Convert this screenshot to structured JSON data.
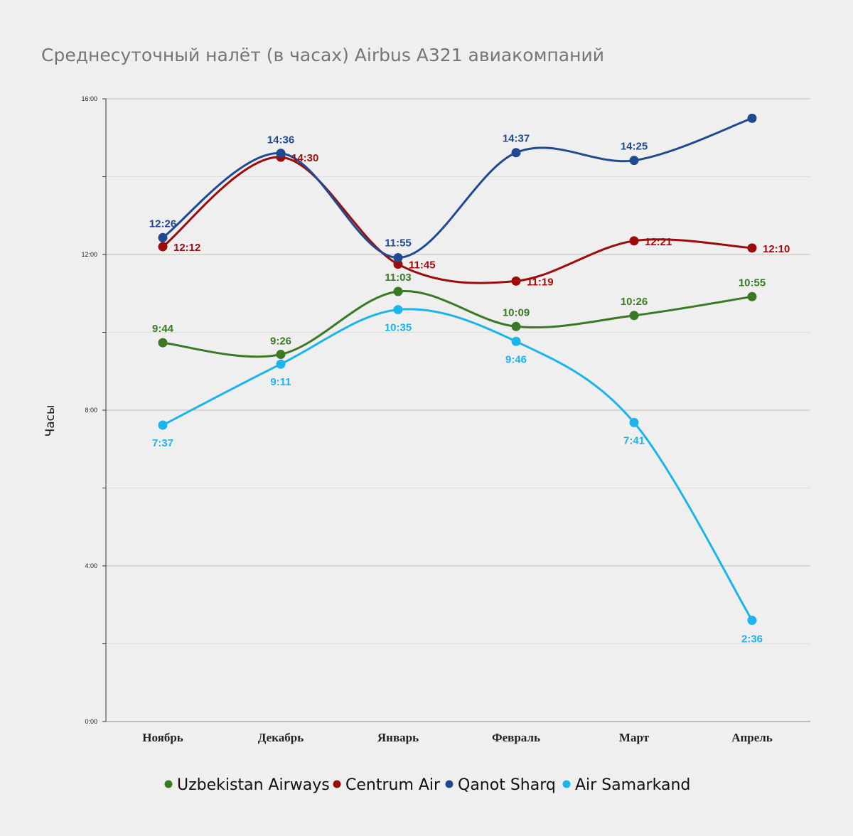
{
  "chart_data": {
    "type": "line",
    "title": "Среднесуточный налёт (в часах) Airbus A321 авиакомпаний",
    "xlabel": "",
    "ylabel": "Часы",
    "categories": [
      "Ноябрь",
      "Декабрь",
      "Январь",
      "Февраль",
      "Март",
      "Апрель"
    ],
    "ylim": [
      0,
      16
    ],
    "yticks": [
      {
        "value": 0,
        "label": "0:00"
      },
      {
        "value": 4,
        "label": "4:00"
      },
      {
        "value": 8,
        "label": "8:00"
      },
      {
        "value": 12,
        "label": "12:00"
      },
      {
        "value": 16,
        "label": "16:00"
      }
    ],
    "grid": true,
    "legend_position": "bottom",
    "series": [
      {
        "name": "Uzbekistan Airways",
        "color": "#3a7a25",
        "values": [
          9.733,
          9.433,
          11.05,
          10.15,
          10.433,
          10.917
        ],
        "labels": [
          "9:44",
          "9:26",
          "11:03",
          "10:09",
          "10:26",
          "10:55"
        ]
      },
      {
        "name": "Centrum Air",
        "color": "#9b0d0d",
        "values": [
          12.2,
          14.5,
          11.75,
          11.317,
          12.35,
          12.167
        ],
        "labels": [
          "12:12",
          "14:30",
          "11:45",
          "11:19",
          "12:21",
          "12:10"
        ]
      },
      {
        "name": "Qanot Sharq",
        "color": "#1f4a8f",
        "values": [
          12.433,
          14.6,
          11.917,
          14.617,
          14.417,
          15.5
        ],
        "labels": [
          "12:26",
          "14:36",
          "11:55",
          "14:37",
          "14:25",
          ""
        ]
      },
      {
        "name": "Air Samarkand",
        "color": "#1cb4ea",
        "values": [
          7.617,
          9.183,
          10.583,
          9.767,
          7.683,
          2.6
        ],
        "labels": [
          "7:37",
          "9:11",
          "10:35",
          "9:46",
          "7:41",
          "2:36"
        ]
      }
    ]
  }
}
